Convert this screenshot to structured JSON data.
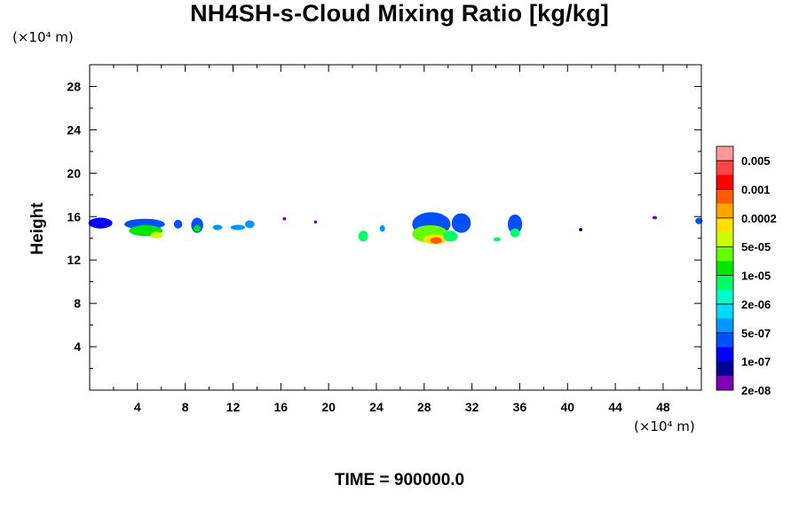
{
  "chart_data": {
    "type": "heatmap",
    "title": "NH4SH-s-Cloud Mixing Ratio [kg/kg]",
    "ylabel": "Height",
    "xlabel": "",
    "x_unit": "(×10⁴ m)",
    "y_unit": "(×10⁴ m)",
    "time_label": "TIME = 900000.0",
    "xlim": [
      0,
      51.2
    ],
    "ylim": [
      0,
      30
    ],
    "x_ticks": [
      4,
      8,
      12,
      16,
      20,
      24,
      28,
      32,
      36,
      40,
      44,
      48
    ],
    "y_ticks": [
      4,
      8,
      12,
      16,
      20,
      24,
      28
    ],
    "grid": false,
    "legend": "right colorbar",
    "colorbar": {
      "labels": [
        "0.005",
        "0.001",
        "0.0002",
        "5e-05",
        "1e-05",
        "2e-06",
        "5e-07",
        "1e-07",
        "2e-08"
      ],
      "colors": [
        "#ff9999",
        "#ff4444",
        "#ff0000",
        "#ff5a00",
        "#ffa500",
        "#ffe000",
        "#ccff00",
        "#66ff00",
        "#00e600",
        "#00ff66",
        "#00ffc8",
        "#00d8ff",
        "#0096ff",
        "#0050ff",
        "#0000ff",
        "#000096",
        "#7d00b4"
      ]
    },
    "cloud_regions": [
      {
        "x": 0.9,
        "y": 15.4,
        "rx": 1.0,
        "ry": 0.5,
        "level": 14
      },
      {
        "x": 4.6,
        "y": 15.3,
        "rx": 1.7,
        "ry": 0.5,
        "level": 13
      },
      {
        "x": 4.7,
        "y": 14.7,
        "rx": 1.4,
        "ry": 0.5,
        "level": 8
      },
      {
        "x": 5.6,
        "y": 14.3,
        "rx": 0.5,
        "ry": 0.3,
        "level": 6
      },
      {
        "x": 7.4,
        "y": 15.3,
        "rx": 0.35,
        "ry": 0.4,
        "level": 13
      },
      {
        "x": 9.0,
        "y": 15.2,
        "rx": 0.5,
        "ry": 0.7,
        "level": 13
      },
      {
        "x": 9.0,
        "y": 14.9,
        "rx": 0.3,
        "ry": 0.3,
        "level": 8
      },
      {
        "x": 10.7,
        "y": 15.0,
        "rx": 0.4,
        "ry": 0.25,
        "level": 12
      },
      {
        "x": 12.4,
        "y": 15.0,
        "rx": 0.6,
        "ry": 0.25,
        "level": 12
      },
      {
        "x": 13.4,
        "y": 15.3,
        "rx": 0.4,
        "ry": 0.35,
        "level": 12
      },
      {
        "x": 16.3,
        "y": 15.8,
        "rx": 0.15,
        "ry": 0.15,
        "level": 16
      },
      {
        "x": 18.9,
        "y": 15.5,
        "rx": 0.12,
        "ry": 0.15,
        "level": 16
      },
      {
        "x": 22.9,
        "y": 14.2,
        "rx": 0.4,
        "ry": 0.5,
        "level": 9
      },
      {
        "x": 24.5,
        "y": 14.9,
        "rx": 0.22,
        "ry": 0.3,
        "level": 12
      },
      {
        "x": 28.6,
        "y": 15.3,
        "rx": 1.6,
        "ry": 1.1,
        "level": 13
      },
      {
        "x": 28.5,
        "y": 14.4,
        "rx": 1.5,
        "ry": 0.8,
        "level": 7
      },
      {
        "x": 28.9,
        "y": 13.9,
        "rx": 1.0,
        "ry": 0.45,
        "level": 5
      },
      {
        "x": 29.0,
        "y": 13.8,
        "rx": 0.5,
        "ry": 0.3,
        "level": 3
      },
      {
        "x": 31.1,
        "y": 15.4,
        "rx": 0.8,
        "ry": 0.9,
        "level": 13
      },
      {
        "x": 30.2,
        "y": 14.2,
        "rx": 0.6,
        "ry": 0.5,
        "level": 9
      },
      {
        "x": 34.1,
        "y": 13.9,
        "rx": 0.3,
        "ry": 0.2,
        "level": 9
      },
      {
        "x": 35.6,
        "y": 15.3,
        "rx": 0.6,
        "ry": 0.9,
        "level": 13
      },
      {
        "x": 35.6,
        "y": 14.5,
        "rx": 0.4,
        "ry": 0.4,
        "level": 9
      },
      {
        "x": 41.1,
        "y": 14.8,
        "rx": 0.15,
        "ry": 0.15,
        "level": 15
      },
      {
        "x": 47.3,
        "y": 15.9,
        "rx": 0.2,
        "ry": 0.15,
        "level": 16
      },
      {
        "x": 51.0,
        "y": 15.6,
        "rx": 0.3,
        "ry": 0.3,
        "level": 13
      }
    ]
  }
}
